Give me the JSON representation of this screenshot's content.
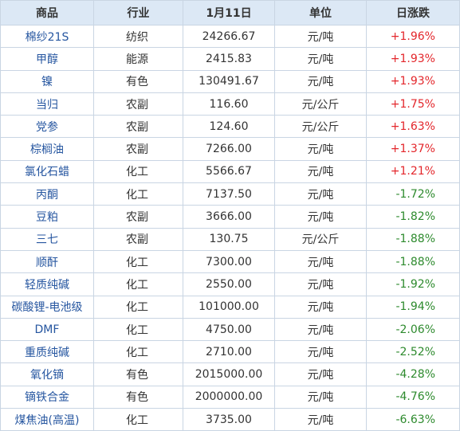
{
  "table": {
    "header": [
      "商品",
      "行业",
      "1月11日",
      "单位",
      "日涨跌"
    ],
    "rows": [
      [
        "棉纱21S",
        "纺织",
        "24266.67",
        "元/吨",
        "+1.96%"
      ],
      [
        "甲醇",
        "能源",
        "2415.83",
        "元/吨",
        "+1.93%"
      ],
      [
        "镍",
        "有色",
        "130491.67",
        "元/吨",
        "+1.93%"
      ],
      [
        "当归",
        "农副",
        "116.60",
        "元/公斤",
        "+1.75%"
      ],
      [
        "党参",
        "农副",
        "124.60",
        "元/公斤",
        "+1.63%"
      ],
      [
        "棕榈油",
        "农副",
        "7266.00",
        "元/吨",
        "+1.37%"
      ],
      [
        "氯化石蜡",
        "化工",
        "5566.67",
        "元/吨",
        "+1.21%"
      ],
      [
        "丙酮",
        "化工",
        "7137.50",
        "元/吨",
        "-1.72%"
      ],
      [
        "豆粕",
        "农副",
        "3666.00",
        "元/吨",
        "-1.82%"
      ],
      [
        "三七",
        "农副",
        "130.75",
        "元/公斤",
        "-1.88%"
      ],
      [
        "顺酐",
        "化工",
        "7300.00",
        "元/吨",
        "-1.88%"
      ],
      [
        "轻质纯碱",
        "化工",
        "2550.00",
        "元/吨",
        "-1.92%"
      ],
      [
        "碳酸锂-电池级",
        "化工",
        "101000.00",
        "元/吨",
        "-1.94%"
      ],
      [
        "DMF",
        "化工",
        "4750.00",
        "元/吨",
        "-2.06%"
      ],
      [
        "重质纯碱",
        "化工",
        "2710.00",
        "元/吨",
        "-2.52%"
      ],
      [
        "氧化镝",
        "有色",
        "2015000.00",
        "元/吨",
        "-4.28%"
      ],
      [
        "镝铁合金",
        "有色",
        "2000000.00",
        "元/吨",
        "-4.76%"
      ],
      [
        "煤焦油(高温)",
        "化工",
        "3735.00",
        "元/吨",
        "-6.63%"
      ]
    ]
  }
}
